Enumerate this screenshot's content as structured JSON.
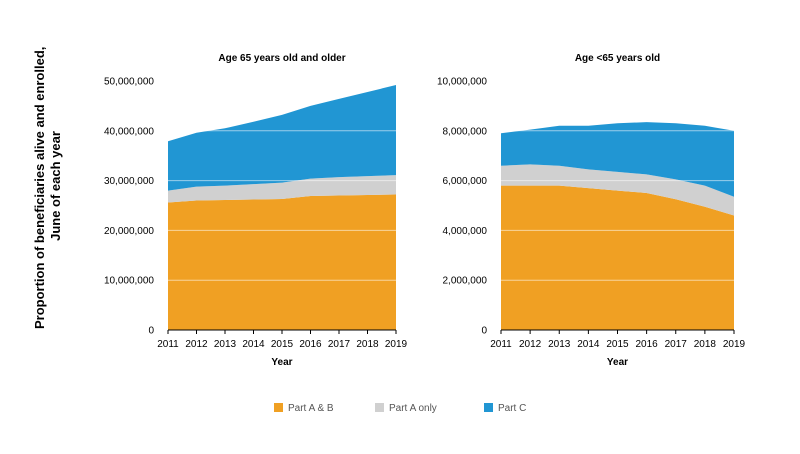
{
  "ylabel_lines": [
    "Proportion of beneficiaries alive and enrolled,",
    "June of each year"
  ],
  "legend": [
    {
      "label": "Part A & B",
      "color": "#F0A023"
    },
    {
      "label": "Part A only",
      "color": "#D0D0D0"
    },
    {
      "label": "Part C",
      "color": "#2196D3"
    }
  ],
  "chart_data": [
    {
      "type": "area",
      "stacked": true,
      "title": "Age 65 years old and older",
      "xlabel": "Year",
      "x": [
        2011,
        2012,
        2013,
        2014,
        2015,
        2016,
        2017,
        2018,
        2019
      ],
      "ylim": [
        0,
        50000000
      ],
      "yticks": [
        0,
        10000000,
        20000000,
        30000000,
        40000000,
        50000000
      ],
      "ytick_labels": [
        "0",
        "10,000,000",
        "20,000,000",
        "30,000,000",
        "40,000,000",
        "50,000,000"
      ],
      "series": [
        {
          "name": "Part A & B",
          "color": "#F0A023",
          "values": [
            25600000,
            26000000,
            26100000,
            26200000,
            26300000,
            26900000,
            27000000,
            27100000,
            27200000
          ]
        },
        {
          "name": "Part A only",
          "color": "#D0D0D0",
          "values": [
            2400000,
            2800000,
            2900000,
            3100000,
            3300000,
            3500000,
            3700000,
            3800000,
            3900000
          ]
        },
        {
          "name": "Part C",
          "color": "#2196D3",
          "values": [
            9900000,
            10800000,
            11500000,
            12500000,
            13600000,
            14600000,
            15700000,
            16900000,
            18100000
          ]
        }
      ]
    },
    {
      "type": "area",
      "stacked": true,
      "title": "Age <65 years old",
      "xlabel": "Year",
      "x": [
        2011,
        2012,
        2013,
        2014,
        2015,
        2016,
        2017,
        2018,
        2019
      ],
      "ylim": [
        0,
        10000000
      ],
      "yticks": [
        0,
        2000000,
        4000000,
        6000000,
        8000000,
        10000000
      ],
      "ytick_labels": [
        "0",
        "2,000,000",
        "4,000,000",
        "6,000,000",
        "8,000,000",
        "10,000,000"
      ],
      "series": [
        {
          "name": "Part A & B",
          "color": "#F0A023",
          "values": [
            5800000,
            5800000,
            5800000,
            5700000,
            5600000,
            5500000,
            5250000,
            4950000,
            4600000
          ]
        },
        {
          "name": "Part A only",
          "color": "#D0D0D0",
          "values": [
            800000,
            850000,
            800000,
            750000,
            750000,
            750000,
            800000,
            850000,
            750000
          ]
        },
        {
          "name": "Part C",
          "color": "#2196D3",
          "values": [
            1300000,
            1400000,
            1600000,
            1750000,
            1950000,
            2100000,
            2250000,
            2400000,
            2650000
          ]
        }
      ]
    }
  ]
}
